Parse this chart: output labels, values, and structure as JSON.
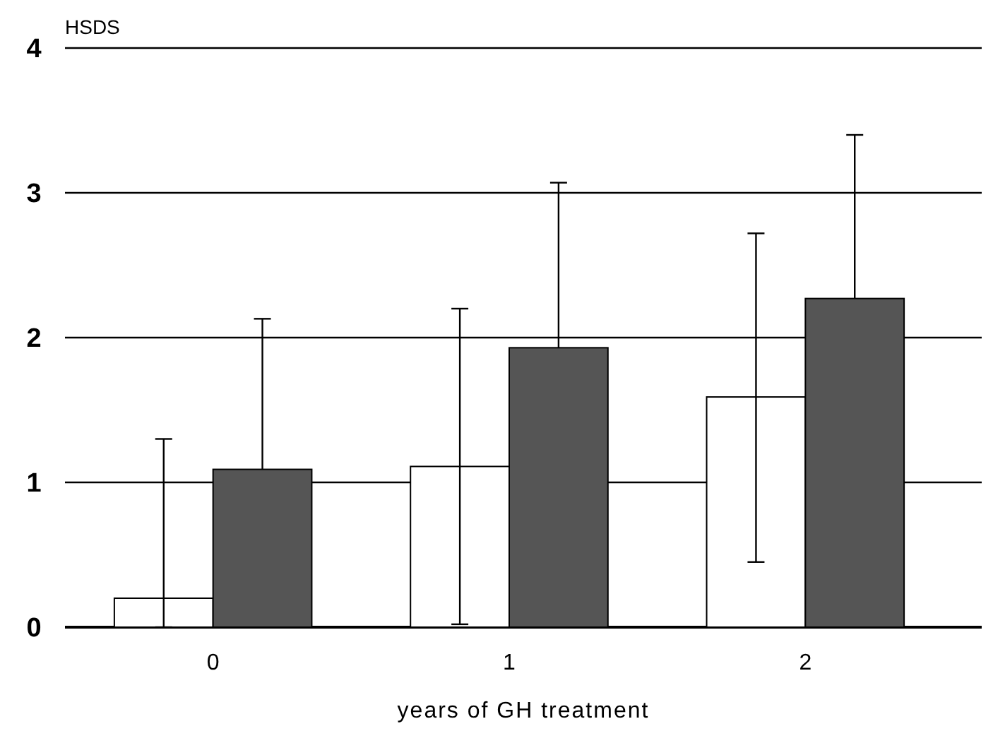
{
  "chart_data": {
    "type": "bar",
    "ylabel": "HSDS",
    "xlabel": "years of GH treatment",
    "categories": [
      "0",
      "1",
      "2"
    ],
    "series": [
      {
        "color": "#ffffff",
        "values": [
          0.2,
          1.11,
          1.59
        ],
        "errors": [
          [
            0,
            1.3
          ],
          [
            0.02,
            2.2
          ],
          [
            0.45,
            2.72
          ]
        ]
      },
      {
        "color": "#555555",
        "values": [
          1.09,
          1.93,
          2.27
        ],
        "errors": [
          [
            1.09,
            2.13
          ],
          [
            1.93,
            3.07
          ],
          [
            2.27,
            3.4
          ]
        ]
      }
    ],
    "ylim": [
      0,
      4
    ],
    "yticks": [
      0,
      1,
      2,
      3,
      4
    ],
    "grid": "y"
  }
}
